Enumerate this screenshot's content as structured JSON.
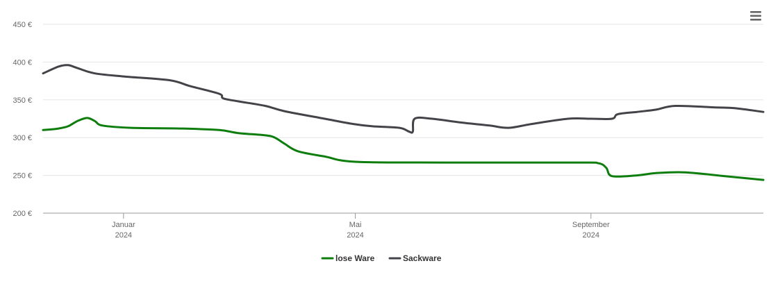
{
  "menu": {
    "icon": "hamburger-menu-icon"
  },
  "chart_data": {
    "type": "line",
    "title": "",
    "xlabel": "",
    "ylabel": "",
    "ylim": [
      200,
      450
    ],
    "y_ticks": [
      {
        "value": 200,
        "label": "200 €"
      },
      {
        "value": 250,
        "label": "250 €"
      },
      {
        "value": 300,
        "label": "300 €"
      },
      {
        "value": 350,
        "label": "350 €"
      },
      {
        "value": 400,
        "label": "400 €"
      },
      {
        "value": 450,
        "label": "450 €"
      }
    ],
    "xlim": [
      "2023-11-20",
      "2024-11-30"
    ],
    "x_ticks": [
      {
        "date": "2024-01-01",
        "label": "Januar",
        "year": "2024"
      },
      {
        "date": "2024-05-01",
        "label": "Mai",
        "year": "2024"
      },
      {
        "date": "2024-09-01",
        "label": "September",
        "year": "2024"
      }
    ],
    "grid": "horizontal",
    "legend_position": "bottom-center",
    "series": [
      {
        "name": "lose Ware",
        "color": "#0d7d0d",
        "points": [
          [
            "2023-11-20",
            310
          ],
          [
            "2023-11-28",
            312
          ],
          [
            "2023-12-03",
            315
          ],
          [
            "2023-12-08",
            322
          ],
          [
            "2023-12-13",
            326
          ],
          [
            "2023-12-17",
            322
          ],
          [
            "2023-12-21",
            316
          ],
          [
            "2024-01-05",
            313
          ],
          [
            "2024-02-01",
            312
          ],
          [
            "2024-02-20",
            310
          ],
          [
            "2024-03-01",
            306
          ],
          [
            "2024-03-15",
            303
          ],
          [
            "2024-03-20",
            300
          ],
          [
            "2024-03-25",
            292
          ],
          [
            "2024-04-01",
            282
          ],
          [
            "2024-04-15",
            275
          ],
          [
            "2024-05-01",
            268
          ],
          [
            "2024-06-15",
            267
          ],
          [
            "2024-08-25",
            267
          ],
          [
            "2024-09-05",
            266
          ],
          [
            "2024-09-09",
            260
          ],
          [
            "2024-09-12",
            249
          ],
          [
            "2024-09-25",
            250
          ],
          [
            "2024-10-05",
            253
          ],
          [
            "2024-10-20",
            254
          ],
          [
            "2024-11-10",
            249
          ],
          [
            "2024-11-30",
            244
          ]
        ]
      },
      {
        "name": "Sackware",
        "color": "#434348",
        "points": [
          [
            "2023-11-20",
            385
          ],
          [
            "2023-11-28",
            394
          ],
          [
            "2023-12-03",
            396
          ],
          [
            "2023-12-08",
            392
          ],
          [
            "2023-12-17",
            385
          ],
          [
            "2024-01-01",
            381
          ],
          [
            "2024-01-25",
            376
          ],
          [
            "2024-02-05",
            368
          ],
          [
            "2024-02-20",
            358
          ],
          [
            "2024-02-22",
            352
          ],
          [
            "2024-03-01",
            348
          ],
          [
            "2024-03-15",
            342
          ],
          [
            "2024-03-25",
            335
          ],
          [
            "2024-04-15",
            325
          ],
          [
            "2024-04-30",
            318
          ],
          [
            "2024-05-10",
            315
          ],
          [
            "2024-05-24",
            313
          ],
          [
            "2024-05-29",
            308
          ],
          [
            "2024-05-31",
            308
          ],
          [
            "2024-06-01",
            325
          ],
          [
            "2024-06-10",
            325
          ],
          [
            "2024-06-25",
            320
          ],
          [
            "2024-07-10",
            316
          ],
          [
            "2024-07-20",
            313
          ],
          [
            "2024-08-01",
            318
          ],
          [
            "2024-08-20",
            325
          ],
          [
            "2024-09-01",
            325
          ],
          [
            "2024-09-12",
            325
          ],
          [
            "2024-09-15",
            331
          ],
          [
            "2024-09-25",
            334
          ],
          [
            "2024-10-05",
            337
          ],
          [
            "2024-10-15",
            342
          ],
          [
            "2024-11-05",
            340
          ],
          [
            "2024-11-15",
            339
          ],
          [
            "2024-11-30",
            334
          ]
        ]
      }
    ]
  }
}
